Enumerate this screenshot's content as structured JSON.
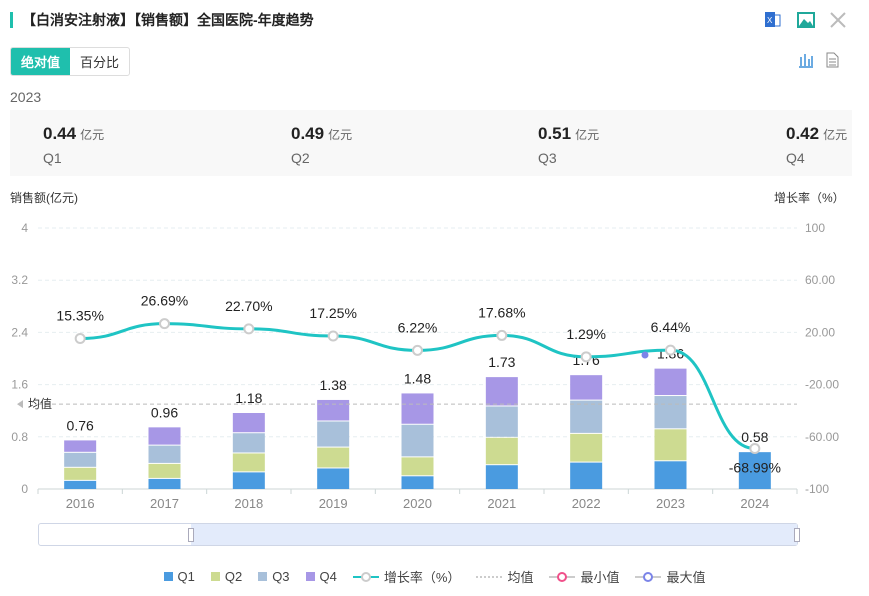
{
  "header": {
    "title": "【白消安注射液】【销售额】全国医院-年度趋势",
    "icons": [
      "excel-export-icon",
      "image-export-icon",
      "close-icon"
    ]
  },
  "toggle": {
    "absolute": "绝对值",
    "percent": "百分比"
  },
  "view_icons": [
    "bar-chart-icon",
    "document-icon"
  ],
  "kpi": {
    "year": "2023",
    "unit": "亿元",
    "items": [
      {
        "value": "0.44",
        "label": "Q1"
      },
      {
        "value": "0.49",
        "label": "Q2"
      },
      {
        "value": "0.51",
        "label": "Q3"
      },
      {
        "value": "0.42",
        "label": "Q4"
      }
    ]
  },
  "colors": {
    "Q1": "#4a9be0",
    "Q2": "#cddb91",
    "Q3": "#a8c0da",
    "Q4": "#a797e6",
    "line": "#1fc4c4"
  },
  "chart_data": {
    "type": "bar",
    "ylabel": "销售额(亿元)",
    "y2label": "增长率（%）",
    "ylim": [
      0,
      4
    ],
    "yticks": [
      "0",
      "0.8",
      "1.6",
      "2.4",
      "3.2",
      "4"
    ],
    "y2lim": [
      -100,
      100
    ],
    "y2ticks": [
      "-100",
      "-60.00",
      "-20.00",
      "20.00",
      "60.00",
      "100"
    ],
    "categories": [
      "2016",
      "2017",
      "2018",
      "2019",
      "2020",
      "2021",
      "2022",
      "2023",
      "2024"
    ],
    "series": [
      {
        "name": "Q1",
        "values": [
          0.14,
          0.17,
          0.27,
          0.33,
          0.21,
          0.38,
          0.42,
          0.44,
          0.58
        ]
      },
      {
        "name": "Q2",
        "values": [
          0.2,
          0.23,
          0.29,
          0.32,
          0.29,
          0.42,
          0.44,
          0.49,
          0
        ]
      },
      {
        "name": "Q3",
        "values": [
          0.23,
          0.28,
          0.31,
          0.4,
          0.5,
          0.48,
          0.51,
          0.51,
          0
        ]
      },
      {
        "name": "Q4",
        "values": [
          0.19,
          0.28,
          0.31,
          0.33,
          0.48,
          0.45,
          0.39,
          0.42,
          0
        ]
      }
    ],
    "totals": [
      "0.76",
      "0.96",
      "1.18",
      "1.38",
      "1.48",
      "1.73",
      "1.76",
      "1.86",
      "0.58"
    ],
    "growth": {
      "name": "增长率（%）",
      "values": [
        15.35,
        26.69,
        22.7,
        17.25,
        6.22,
        17.68,
        1.29,
        6.44,
        -68.99
      ],
      "labels": [
        "15.35%",
        "26.69%",
        "22.70%",
        "17.25%",
        "6.22%",
        "17.68%",
        "1.29%",
        "6.44%",
        "-68.99%"
      ]
    },
    "average": {
      "label": "均值",
      "value": 1.3
    },
    "legend": [
      "Q1",
      "Q2",
      "Q3",
      "Q4",
      "增长率（%）",
      "均值",
      "最小值",
      "最大值"
    ],
    "legend_position": "bottom"
  }
}
